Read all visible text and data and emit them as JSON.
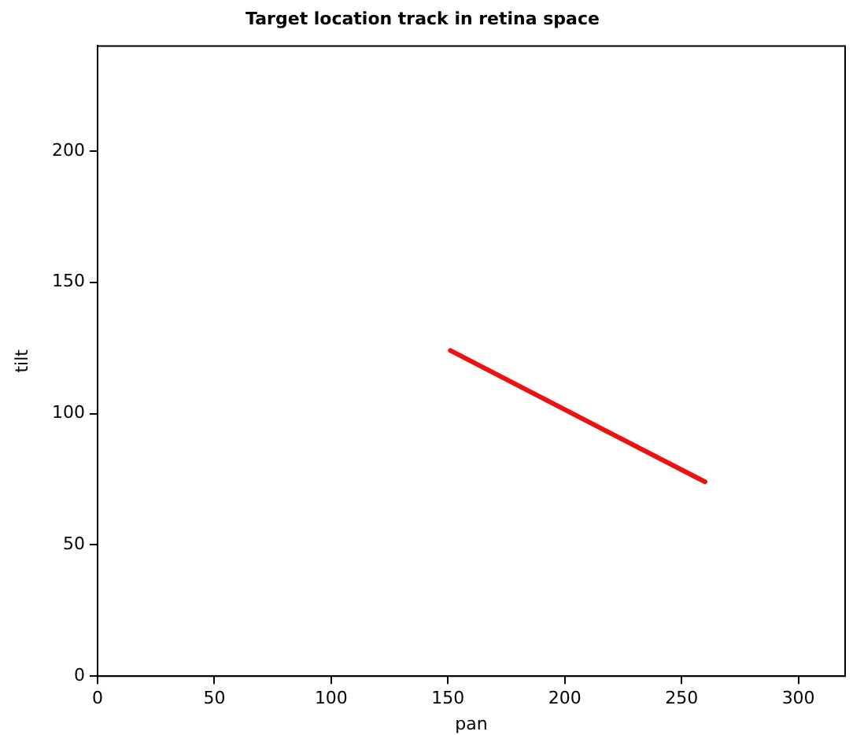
{
  "chart_data": {
    "type": "line",
    "title": "Target location track in retina space",
    "xlabel": "pan",
    "ylabel": "tilt",
    "series": [
      {
        "color": "#ee1111",
        "x": [
          151,
          260
        ],
        "values": [
          124,
          74
        ]
      }
    ],
    "xlim": [
      0,
      320
    ],
    "xticks": [
      0,
      50,
      100,
      150,
      200,
      250,
      300
    ],
    "ylim": [
      0,
      240
    ],
    "yticks": [
      0,
      50,
      100,
      150,
      200
    ],
    "grid": false,
    "legend": false,
    "marker": "none",
    "line_style": "solid"
  }
}
